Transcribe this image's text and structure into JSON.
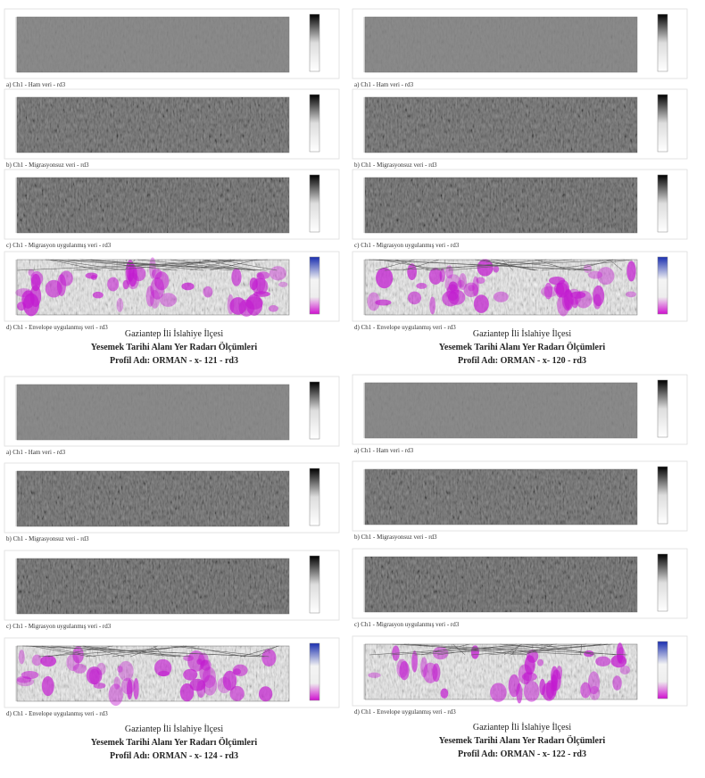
{
  "quadrants": [
    {
      "panels": [
        {
          "caption": "a) Ch1 - Ham veri - rd3"
        },
        {
          "caption": "b) Ch1 - Migrasyonsuz veri - rd3"
        },
        {
          "caption": "c) Ch1 - Migrasyon uygulanmış veri - rd3"
        },
        {
          "caption": "d) Ch1 - Envelope uygulanmış veri - rd3"
        }
      ],
      "title_lines": [
        "Gaziantep  İli İslahiye İlçesi",
        "Yesemek Tarihi Alanı Yer Radarı Ölçümleri",
        "Profil Adı: ORMAN - x- 121 - rd3"
      ]
    },
    {
      "panels": [
        {
          "caption": "a) Ch1 - Ham veri - rd3"
        },
        {
          "caption": "b) Ch1 - Migrasyonsuz veri - rd3"
        },
        {
          "caption": "c) Ch1 - Migrasyon uygulanmış veri - rd3"
        },
        {
          "caption": "d) Ch1 - Envelope uygulanmış veri - rd3"
        }
      ],
      "title_lines": [
        "Gaziantep  İli İslahiye İlçesi",
        "Yesemek Tarihi Alanı Yer Radarı Ölçümleri",
        "Profil Adı: ORMAN - x- 120  - rd3"
      ]
    },
    {
      "panels": [
        {
          "caption": "a) Ch1 - Ham veri - rd3"
        },
        {
          "caption": "b) Ch1 - Migrasyonsuz veri - rd3"
        },
        {
          "caption": "c) Ch1 - Migrasyon uygulanmış veri - rd3"
        },
        {
          "caption": "d) Ch1 - Envelope uygulanmış veri - rd3"
        }
      ],
      "title_lines": [
        "Gaziantep  İli İslahiye İlçesi",
        "Yesemek Tarihi Alanı Yer Radarı Ölçümleri",
        "Profil Adı: ORMAN - x- 124  - rd3"
      ]
    },
    {
      "panels": [
        {
          "caption": "a) Ch1 - Ham veri - rd3"
        },
        {
          "caption": "b) Ch1 - Migrasyonsuz veri - rd3"
        },
        {
          "caption": "c) Ch1 - Migrasyon uygulanmış veri - rd3"
        },
        {
          "caption": "d) Ch1 - Envelope uygulanmış veri - rd3"
        }
      ],
      "title_lines": [
        "Gaziantep  İli İslahiye İlçesi",
        "Yesemek Tarihi Alanı Yer Radarı Ölçümleri",
        "Profil Adı: ORMAN - x- 122  - rd3"
      ]
    }
  ]
}
